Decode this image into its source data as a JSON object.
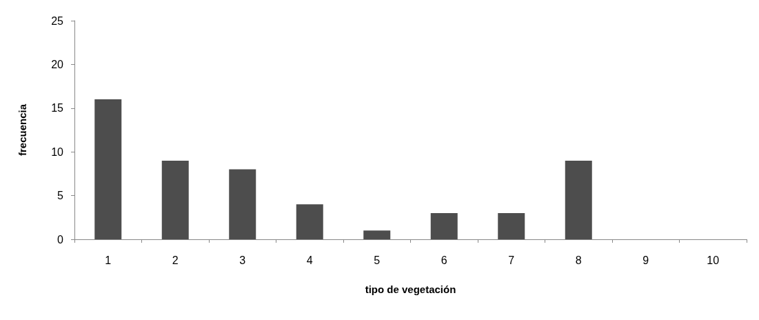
{
  "chart_data": {
    "type": "bar",
    "xlabel": "tipo de vegetación",
    "ylabel": "frecuencia",
    "categories": [
      "1",
      "2",
      "3",
      "4",
      "5",
      "6",
      "7",
      "8",
      "9",
      "10"
    ],
    "values": [
      16,
      9,
      8,
      4,
      1,
      3,
      3,
      9,
      0,
      0
    ],
    "color": "#4d4d4d",
    "ylim": [
      0,
      25
    ],
    "yticks": [
      0,
      5,
      10,
      15,
      20,
      25
    ],
    "grid": false
  }
}
